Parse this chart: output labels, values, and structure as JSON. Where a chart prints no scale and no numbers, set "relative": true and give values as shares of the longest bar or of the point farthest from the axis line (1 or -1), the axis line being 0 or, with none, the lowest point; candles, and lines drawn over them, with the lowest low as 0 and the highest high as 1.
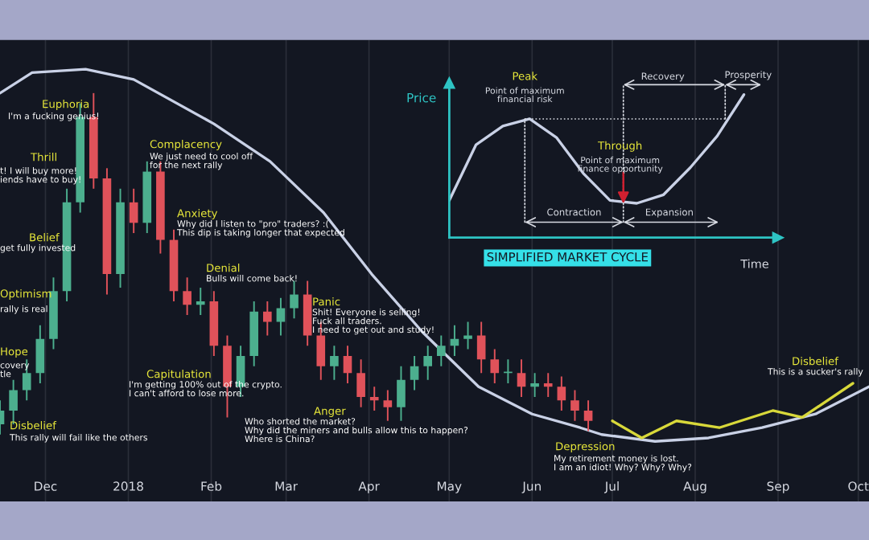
{
  "chart_data": [
    {
      "type": "candlestick",
      "relative": true,
      "grid": "x",
      "x": [
        "2017-11-14",
        "2017-11-19",
        "2017-11-24",
        "2017-11-29",
        "2017-12-04",
        "2017-12-09",
        "2017-12-14",
        "2017-12-19",
        "2017-12-24",
        "2017-12-29",
        "2018-01-03",
        "2018-01-08",
        "2018-01-13",
        "2018-01-18",
        "2018-01-23",
        "2018-01-28",
        "2018-02-02",
        "2018-02-07",
        "2018-02-12",
        "2018-02-17",
        "2018-02-22",
        "2018-02-27",
        "2018-03-04",
        "2018-03-09",
        "2018-03-14",
        "2018-03-19",
        "2018-03-24",
        "2018-03-29",
        "2018-04-03",
        "2018-04-08",
        "2018-04-13",
        "2018-04-18",
        "2018-04-23",
        "2018-04-28",
        "2018-05-03",
        "2018-05-08",
        "2018-05-13",
        "2018-05-18",
        "2018-05-23",
        "2018-05-28",
        "2018-06-02",
        "2018-06-07",
        "2018-06-12",
        "2018-06-17",
        "2018-06-22"
      ],
      "ohlc": [
        [
          0.03,
          0.1,
          0,
          0.07
        ],
        [
          0.07,
          0.16,
          0.03,
          0.13
        ],
        [
          0.13,
          0.22,
          0.1,
          0.18
        ],
        [
          0.18,
          0.32,
          0.15,
          0.28
        ],
        [
          0.28,
          0.46,
          0.25,
          0.42
        ],
        [
          0.42,
          0.72,
          0.39,
          0.68
        ],
        [
          0.68,
          0.97,
          0.65,
          0.93
        ],
        [
          0.93,
          1.0,
          0.72,
          0.75
        ],
        [
          0.75,
          0.78,
          0.41,
          0.47
        ],
        [
          0.47,
          0.72,
          0.43,
          0.68
        ],
        [
          0.68,
          0.72,
          0.59,
          0.62
        ],
        [
          0.62,
          0.8,
          0.59,
          0.77
        ],
        [
          0.77,
          0.8,
          0.53,
          0.57
        ],
        [
          0.57,
          0.6,
          0.39,
          0.42
        ],
        [
          0.42,
          0.46,
          0.35,
          0.38
        ],
        [
          0.38,
          0.43,
          0.35,
          0.39
        ],
        [
          0.39,
          0.42,
          0.23,
          0.26
        ],
        [
          0.26,
          0.29,
          0.05,
          0.14
        ],
        [
          0.14,
          0.26,
          0.11,
          0.23
        ],
        [
          0.23,
          0.39,
          0.2,
          0.36
        ],
        [
          0.36,
          0.39,
          0.29,
          0.33
        ],
        [
          0.33,
          0.4,
          0.29,
          0.37
        ],
        [
          0.37,
          0.45,
          0.34,
          0.41
        ],
        [
          0.41,
          0.45,
          0.26,
          0.29
        ],
        [
          0.29,
          0.33,
          0.16,
          0.2
        ],
        [
          0.2,
          0.26,
          0.16,
          0.23
        ],
        [
          0.23,
          0.26,
          0.15,
          0.18
        ],
        [
          0.18,
          0.22,
          0.08,
          0.11
        ],
        [
          0.11,
          0.14,
          0.07,
          0.1
        ],
        [
          0.1,
          0.13,
          0.04,
          0.08
        ],
        [
          0.08,
          0.2,
          0.04,
          0.16
        ],
        [
          0.16,
          0.23,
          0.13,
          0.2
        ],
        [
          0.2,
          0.26,
          0.16,
          0.23
        ],
        [
          0.23,
          0.29,
          0.2,
          0.26
        ],
        [
          0.26,
          0.32,
          0.23,
          0.28
        ],
        [
          0.28,
          0.33,
          0.25,
          0.29
        ],
        [
          0.29,
          0.33,
          0.18,
          0.22
        ],
        [
          0.22,
          0.25,
          0.15,
          0.18
        ],
        [
          0.18,
          0.22,
          0.15,
          0.18
        ],
        [
          0.18,
          0.22,
          0.11,
          0.14
        ],
        [
          0.14,
          0.18,
          0.11,
          0.15
        ],
        [
          0.15,
          0.18,
          0.11,
          0.14
        ],
        [
          0.14,
          0.17,
          0.07,
          0.1
        ],
        [
          0.1,
          0.13,
          0.04,
          0.07
        ],
        [
          0.07,
          0.1,
          0.01,
          0.04
        ]
      ],
      "series": [
        {
          "type": "line",
          "color": "#c9d1e6",
          "x": [
            "2017-11-14",
            "2017-11-26",
            "2017-12-16",
            "2018-01-03",
            "2018-02-02",
            "2018-02-23",
            "2018-03-15",
            "2018-04-02",
            "2018-04-21",
            "2018-05-12",
            "2018-06-01",
            "2018-06-19",
            "2018-06-27",
            "2018-07-17",
            "2018-08-06",
            "2018-08-26",
            "2018-09-15",
            "2018-10-05"
          ],
          "values": [
            1.0,
            1.06,
            1.07,
            1.04,
            0.91,
            0.8,
            0.65,
            0.47,
            0.3,
            0.14,
            0.06,
            0.02,
            0.0,
            -0.02,
            -0.01,
            0.02,
            0.06,
            0.14
          ]
        },
        {
          "type": "line",
          "color": "#d8d83a",
          "x": [
            "2018-07-01",
            "2018-07-12",
            "2018-07-25",
            "2018-08-10",
            "2018-08-30",
            "2018-09-10",
            "2018-09-29"
          ],
          "values": [
            0.04,
            -0.01,
            0.04,
            0.02,
            0.07,
            0.05,
            0.15
          ]
        }
      ],
      "xlim": [
        "2017-11-14",
        "2018-10-05"
      ],
      "xticks": [
        {
          "value": "2017-12-01",
          "label": "Dec"
        },
        {
          "value": "2018-01-01",
          "label": "2018"
        },
        {
          "value": "2018-02-01",
          "label": "Feb"
        },
        {
          "value": "2018-03-01",
          "label": "Mar"
        },
        {
          "value": "2018-04-01",
          "label": "Apr"
        },
        {
          "value": "2018-05-01",
          "label": "May"
        },
        {
          "value": "2018-06-01",
          "label": "Jun"
        },
        {
          "value": "2018-07-01",
          "label": "Jul"
        },
        {
          "value": "2018-08-01",
          "label": "Aug"
        },
        {
          "value": "2018-09-01",
          "label": "Sep"
        },
        {
          "value": "2018-10-01",
          "label": "Oct"
        }
      ],
      "annotations": [
        "Disbelief\nThis rally will fail like the others",
        "Hope\ncovery\ntle",
        "Optimism\nrally is real",
        "Belief\nget fully invested",
        "Thrill\nt! I will buy more!\niends have to buy!",
        "Euphoria\nI'm a fucking genius!",
        "Complacency\nWe just need to cool off\nfor the next rally",
        "Anxiety\nWhy did I listen to \"pro\" traders? :(\nThis dip is taking longer that expected",
        "Denial\nBulls will come back!",
        "Capitulation\nI'm getting 100% out of the crypto.\nI can't afford to lose more.",
        "Anger\nWho shorted the market?\nWhy did the miners and bulls allow this to happen?\nWhere is China?",
        "Panic\nShit! Everyone is selling!\nFuck all traders.\nI need to get out and study!",
        "Depression\nMy retirement money is lost.\nI am an idiot! Why? Why? Why?",
        "Disbelief\nThis is a sucker's rally"
      ]
    },
    {
      "type": "line",
      "relative": true,
      "title": "SIMPLIFIED MARKET CYCLE",
      "xlabel": "Time",
      "ylabel": "Price",
      "categories": [
        null,
        null,
        null,
        null,
        null,
        null,
        null,
        null,
        null,
        null,
        null,
        null
      ],
      "ref_lines": [
        {
          "axis": "y",
          "value": 0.83,
          "line_style": "dotted"
        }
      ],
      "series": [
        {
          "color": "#c9d1e6",
          "values": [
            0.26,
            0.65,
            0.78,
            0.83,
            0.7,
            0.45,
            0.26,
            0.24,
            0.3,
            0.49,
            0.71,
            1.0
          ]
        }
      ],
      "annotations": [
        "Peak",
        "Point of maximum\nfinancial risk",
        "Through",
        "Point of maximum\nfinance opportunity",
        "Contraction",
        "Expansion",
        "Recovery",
        "Prosperity"
      ]
    }
  ]
}
